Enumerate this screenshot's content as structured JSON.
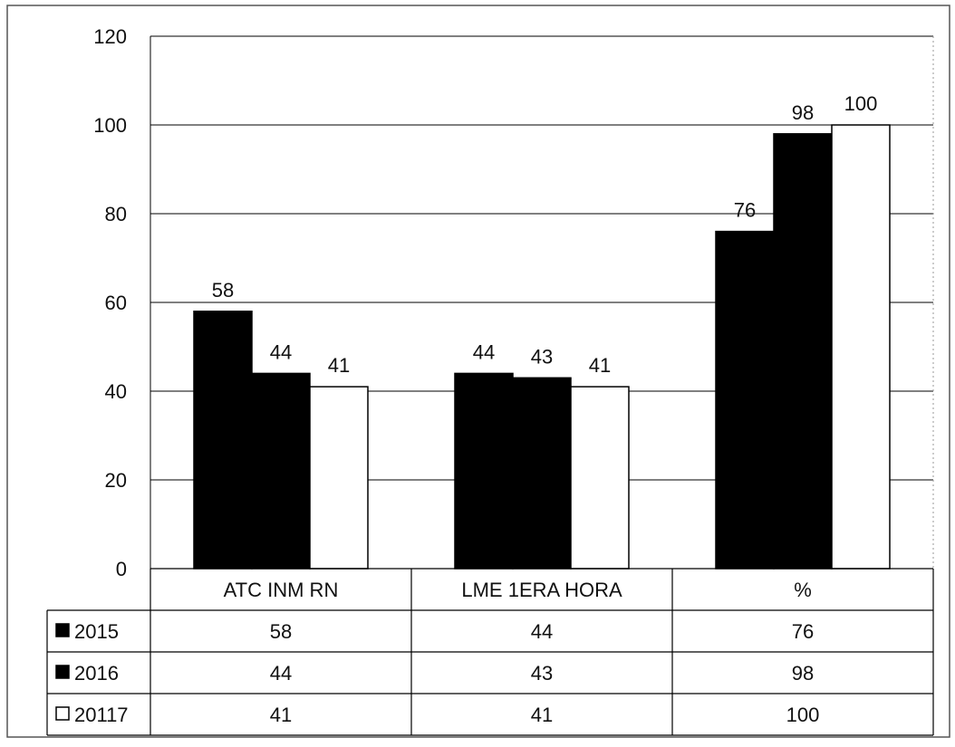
{
  "chart_data": {
    "type": "bar",
    "title": "",
    "xlabel": "",
    "ylabel": "",
    "categories": [
      "ATC INM RN",
      "LME 1ERA HORA",
      "%"
    ],
    "series": [
      {
        "name": "2015",
        "values": [
          58,
          44,
          76
        ],
        "color": "#000000"
      },
      {
        "name": "2016",
        "values": [
          44,
          43,
          98
        ],
        "color": "#000000"
      },
      {
        "name": "20117",
        "values": [
          41,
          41,
          100
        ],
        "color": "#ffffff"
      }
    ],
    "ylim": [
      0,
      120
    ],
    "yticks": [
      0,
      20,
      40,
      60,
      80,
      100,
      120
    ],
    "grid": true,
    "data_table": true,
    "legend": "data-table"
  }
}
